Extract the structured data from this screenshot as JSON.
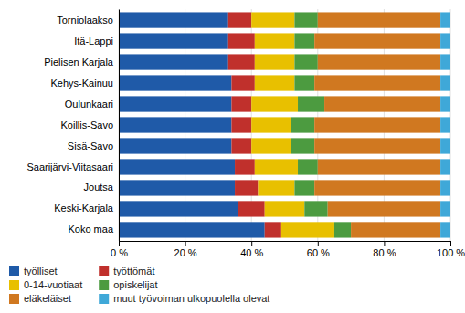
{
  "chart_data": {
    "type": "bar",
    "orientation": "horizontal",
    "stacked": true,
    "categories": [
      "Torniolaakso",
      "Itä-Lappi",
      "Pielisen Karjala",
      "Kehys-Kainuu",
      "Oulunkaari",
      "Koillis-Savo",
      "Sisä-Savo",
      "Saarijärvi-Viitasaari",
      "Joutsa",
      "Keski-Karjala",
      "Koko maa"
    ],
    "series": [
      {
        "name": "työlliset",
        "color": "#1F5AA8",
        "values": [
          33,
          33,
          33,
          34,
          34,
          34,
          34,
          35,
          35,
          36,
          44
        ]
      },
      {
        "name": "työttömät",
        "color": "#C0302C",
        "values": [
          7,
          8,
          8,
          7,
          6,
          6,
          6,
          6,
          7,
          8,
          5
        ]
      },
      {
        "name": "0-14-vuotiaat",
        "color": "#E8C000",
        "values": [
          13,
          12,
          12,
          12,
          14,
          12,
          12,
          13,
          11,
          12,
          16
        ]
      },
      {
        "name": "opiskelijat",
        "color": "#4C9B40",
        "values": [
          7,
          6,
          7,
          6,
          8,
          7,
          7,
          6,
          6,
          7,
          5
        ]
      },
      {
        "name": "eläkeläiset",
        "color": "#D07820",
        "values": [
          37,
          38,
          37,
          38,
          35,
          38,
          38,
          37,
          38,
          34,
          27
        ]
      },
      {
        "name": "muut työvoiman ulkopuolella olevat",
        "color": "#3FA8D8",
        "values": [
          3,
          3,
          3,
          3,
          3,
          3,
          3,
          3,
          3,
          3,
          3
        ]
      }
    ],
    "xlim": [
      0,
      100
    ],
    "xticks": [
      {
        "value": 0,
        "label": "0 %"
      },
      {
        "value": 20,
        "label": "20 %"
      },
      {
        "value": 40,
        "label": "40 %"
      },
      {
        "value": 60,
        "label": "60 %"
      },
      {
        "value": 80,
        "label": "80 %"
      },
      {
        "value": 100,
        "label": "100 %"
      }
    ],
    "grid": true,
    "legend": "lower left"
  }
}
